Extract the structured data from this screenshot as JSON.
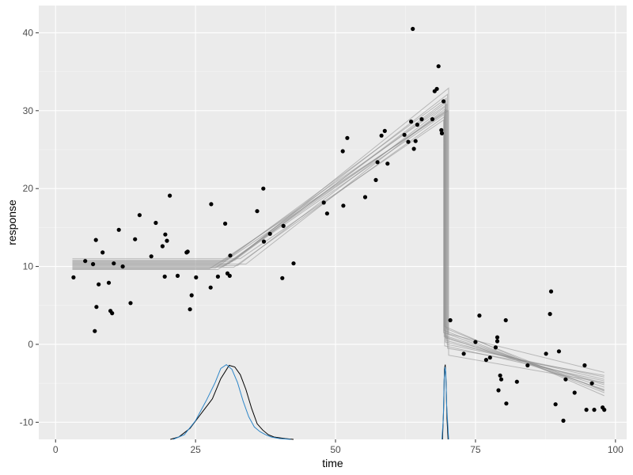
{
  "chart_data": {
    "type": "scatter",
    "title": "",
    "xlabel": "time",
    "ylabel": "response",
    "xlim": [
      -3,
      102
    ],
    "ylim": [
      -12.2,
      43.5
    ],
    "xticks": [
      0,
      25,
      50,
      75,
      100
    ],
    "yticks": [
      -10,
      0,
      10,
      20,
      30,
      40
    ],
    "grid": true,
    "legend": "none",
    "colors": {
      "panel_background": "#ebebeb",
      "grid_major": "#ffffff",
      "grid_minor": "#f5f5f5",
      "points": "#000000",
      "fit_lines": "#8c8c8c",
      "density_black": "#000000",
      "density_blue": "#2e86c8"
    },
    "points": [
      [
        3.2,
        8.6
      ],
      [
        5.3,
        10.7
      ],
      [
        6.7,
        10.3
      ],
      [
        7.2,
        13.4
      ],
      [
        7.0,
        1.7
      ],
      [
        7.3,
        4.8
      ],
      [
        7.7,
        7.7
      ],
      [
        8.4,
        11.8
      ],
      [
        9.5,
        7.9
      ],
      [
        9.8,
        4.3
      ],
      [
        10.1,
        4.0
      ],
      [
        10.4,
        10.4
      ],
      [
        11.3,
        14.7
      ],
      [
        12.0,
        10.0
      ],
      [
        13.4,
        5.3
      ],
      [
        14.2,
        13.5
      ],
      [
        15.0,
        16.6
      ],
      [
        17.1,
        11.3
      ],
      [
        17.9,
        15.6
      ],
      [
        19.1,
        12.6
      ],
      [
        19.5,
        8.7
      ],
      [
        19.6,
        14.1
      ],
      [
        19.9,
        13.3
      ],
      [
        20.4,
        19.1
      ],
      [
        21.8,
        8.8
      ],
      [
        23.4,
        11.8
      ],
      [
        23.6,
        11.9
      ],
      [
        24.0,
        4.5
      ],
      [
        24.3,
        6.3
      ],
      [
        25.1,
        8.6
      ],
      [
        27.7,
        7.3
      ],
      [
        27.8,
        18.0
      ],
      [
        29.0,
        8.7
      ],
      [
        30.3,
        15.5
      ],
      [
        30.7,
        9.1
      ],
      [
        31.2,
        11.4
      ],
      [
        31.1,
        8.8
      ],
      [
        36.0,
        17.1
      ],
      [
        37.1,
        20.0
      ],
      [
        37.2,
        13.2
      ],
      [
        38.3,
        14.2
      ],
      [
        40.5,
        8.5
      ],
      [
        40.7,
        15.2
      ],
      [
        42.5,
        10.4
      ],
      [
        47.9,
        18.2
      ],
      [
        48.5,
        16.8
      ],
      [
        51.3,
        24.8
      ],
      [
        51.4,
        17.8
      ],
      [
        52.1,
        26.5
      ],
      [
        55.3,
        18.9
      ],
      [
        57.2,
        21.1
      ],
      [
        57.5,
        23.4
      ],
      [
        58.2,
        26.8
      ],
      [
        58.8,
        27.4
      ],
      [
        59.3,
        23.2
      ],
      [
        62.3,
        26.9
      ],
      [
        63.0,
        26.0
      ],
      [
        63.5,
        28.6
      ],
      [
        63.8,
        40.5
      ],
      [
        64.0,
        25.1
      ],
      [
        64.3,
        26.1
      ],
      [
        64.6,
        28.2
      ],
      [
        65.4,
        28.9
      ],
      [
        67.3,
        28.9
      ],
      [
        67.7,
        32.5
      ],
      [
        68.1,
        32.8
      ],
      [
        68.4,
        35.7
      ],
      [
        68.9,
        27.5
      ],
      [
        69.0,
        27.1
      ],
      [
        69.3,
        31.2
      ],
      [
        70.5,
        3.1
      ],
      [
        72.9,
        -1.2
      ],
      [
        75.0,
        0.3
      ],
      [
        75.7,
        3.7
      ],
      [
        76.9,
        -2.0
      ],
      [
        77.6,
        -1.7
      ],
      [
        78.6,
        -0.4
      ],
      [
        78.9,
        0.9
      ],
      [
        78.9,
        0.4
      ],
      [
        79.1,
        -5.9
      ],
      [
        79.4,
        -4.0
      ],
      [
        79.6,
        -4.5
      ],
      [
        80.4,
        3.1
      ],
      [
        80.5,
        -7.6
      ],
      [
        82.4,
        -4.8
      ],
      [
        84.3,
        -2.7
      ],
      [
        87.6,
        -1.2
      ],
      [
        88.3,
        3.9
      ],
      [
        88.5,
        6.8
      ],
      [
        89.3,
        -7.7
      ],
      [
        89.9,
        -0.9
      ],
      [
        90.7,
        -9.8
      ],
      [
        91.1,
        -4.5
      ],
      [
        92.7,
        -6.2
      ],
      [
        94.5,
        -2.7
      ],
      [
        94.8,
        -8.4
      ],
      [
        95.8,
        -5.0
      ],
      [
        96.2,
        -8.4
      ],
      [
        97.7,
        -8.1
      ],
      [
        98.0,
        -8.4
      ]
    ],
    "fits": [
      {
        "level": 10.0,
        "cp1": 30.0,
        "y_cp2": 29.5,
        "cp2": 69.4,
        "y_after": 1.0,
        "y_end": -5.8
      },
      {
        "level": 10.8,
        "cp1": 32.0,
        "y_cp2": 31.2,
        "cp2": 69.6,
        "y_after": 0.3,
        "y_end": -4.5
      },
      {
        "level": 9.6,
        "cp1": 29.0,
        "y_cp2": 30.1,
        "cp2": 69.8,
        "y_after": 2.0,
        "y_end": -6.0
      },
      {
        "level": 10.4,
        "cp1": 31.0,
        "y_cp2": 32.1,
        "cp2": 70.0,
        "y_after": -0.5,
        "y_end": -4.0
      },
      {
        "level": 11.0,
        "cp1": 33.0,
        "y_cp2": 28.8,
        "cp2": 69.3,
        "y_after": 1.5,
        "y_end": -3.6
      },
      {
        "level": 10.2,
        "cp1": 30.5,
        "y_cp2": 31.0,
        "cp2": 69.7,
        "y_after": 0.8,
        "y_end": -5.2
      },
      {
        "level": 9.8,
        "cp1": 28.5,
        "y_cp2": 29.8,
        "cp2": 69.5,
        "y_after": 2.3,
        "y_end": -6.6
      },
      {
        "level": 10.6,
        "cp1": 31.5,
        "y_cp2": 32.9,
        "cp2": 70.2,
        "y_after": -1.4,
        "y_end": -4.9
      },
      {
        "level": 10.1,
        "cp1": 32.5,
        "y_cp2": 30.5,
        "cp2": 69.6,
        "y_after": 1.1,
        "y_end": -5.5
      },
      {
        "level": 10.5,
        "cp1": 29.5,
        "y_cp2": 30.8,
        "cp2": 69.9,
        "y_after": 0.0,
        "y_end": -4.2
      },
      {
        "level": 9.9,
        "cp1": 31.8,
        "y_cp2": 29.2,
        "cp2": 69.4,
        "y_after": 1.8,
        "y_end": -6.2
      },
      {
        "level": 10.7,
        "cp1": 30.2,
        "y_cp2": 31.6,
        "cp2": 69.8,
        "y_after": 0.5,
        "y_end": -5.0
      },
      {
        "level": 10.3,
        "cp1": 34.0,
        "y_cp2": 30.2,
        "cp2": 69.5,
        "y_after": -0.2,
        "y_end": -4.7
      },
      {
        "level": 9.7,
        "cp1": 27.5,
        "y_cp2": 30.0,
        "cp2": 70.1,
        "y_after": 1.3,
        "y_end": -5.9
      }
    ],
    "densities": [
      {
        "name": "cp1-a",
        "color": "#000000",
        "x": [
          20.5,
          22,
          24,
          26,
          28,
          29.5,
          31,
          32,
          33,
          34,
          35,
          36,
          37,
          38,
          39,
          40,
          41,
          42.5
        ],
        "y": [
          -12.2,
          -11.9,
          -10.8,
          -8.9,
          -7.0,
          -4.4,
          -2.7,
          -2.9,
          -3.9,
          -5.8,
          -8.2,
          -10.2,
          -11.0,
          -11.6,
          -11.9,
          -12.0,
          -12.1,
          -12.2
        ]
      },
      {
        "name": "cp1-b",
        "color": "#2e86c8",
        "x": [
          21,
          23,
          25,
          27,
          28.5,
          29.5,
          30.5,
          31.5,
          32.5,
          33.5,
          34.5,
          35.5,
          36.5,
          37.5,
          38.5,
          40,
          42
        ],
        "y": [
          -12.2,
          -11.6,
          -9.8,
          -7.1,
          -4.9,
          -3.1,
          -2.6,
          -3.2,
          -4.9,
          -7.3,
          -9.3,
          -10.6,
          -11.2,
          -11.6,
          -11.9,
          -12.1,
          -12.2
        ]
      },
      {
        "name": "cp2-a",
        "color": "#000000",
        "x": [
          69.1,
          69.3,
          69.45,
          69.6,
          69.75,
          69.9,
          70.1
        ],
        "y": [
          -12.2,
          -8.5,
          -3.2,
          -2.6,
          -5.0,
          -9.5,
          -12.2
        ]
      },
      {
        "name": "cp2-b",
        "color": "#2e86c8",
        "x": [
          69.0,
          69.25,
          69.4,
          69.55,
          69.7,
          69.85,
          70.2
        ],
        "y": [
          -12.2,
          -9.5,
          -4.6,
          -2.9,
          -3.6,
          -7.8,
          -12.2
        ]
      }
    ]
  }
}
